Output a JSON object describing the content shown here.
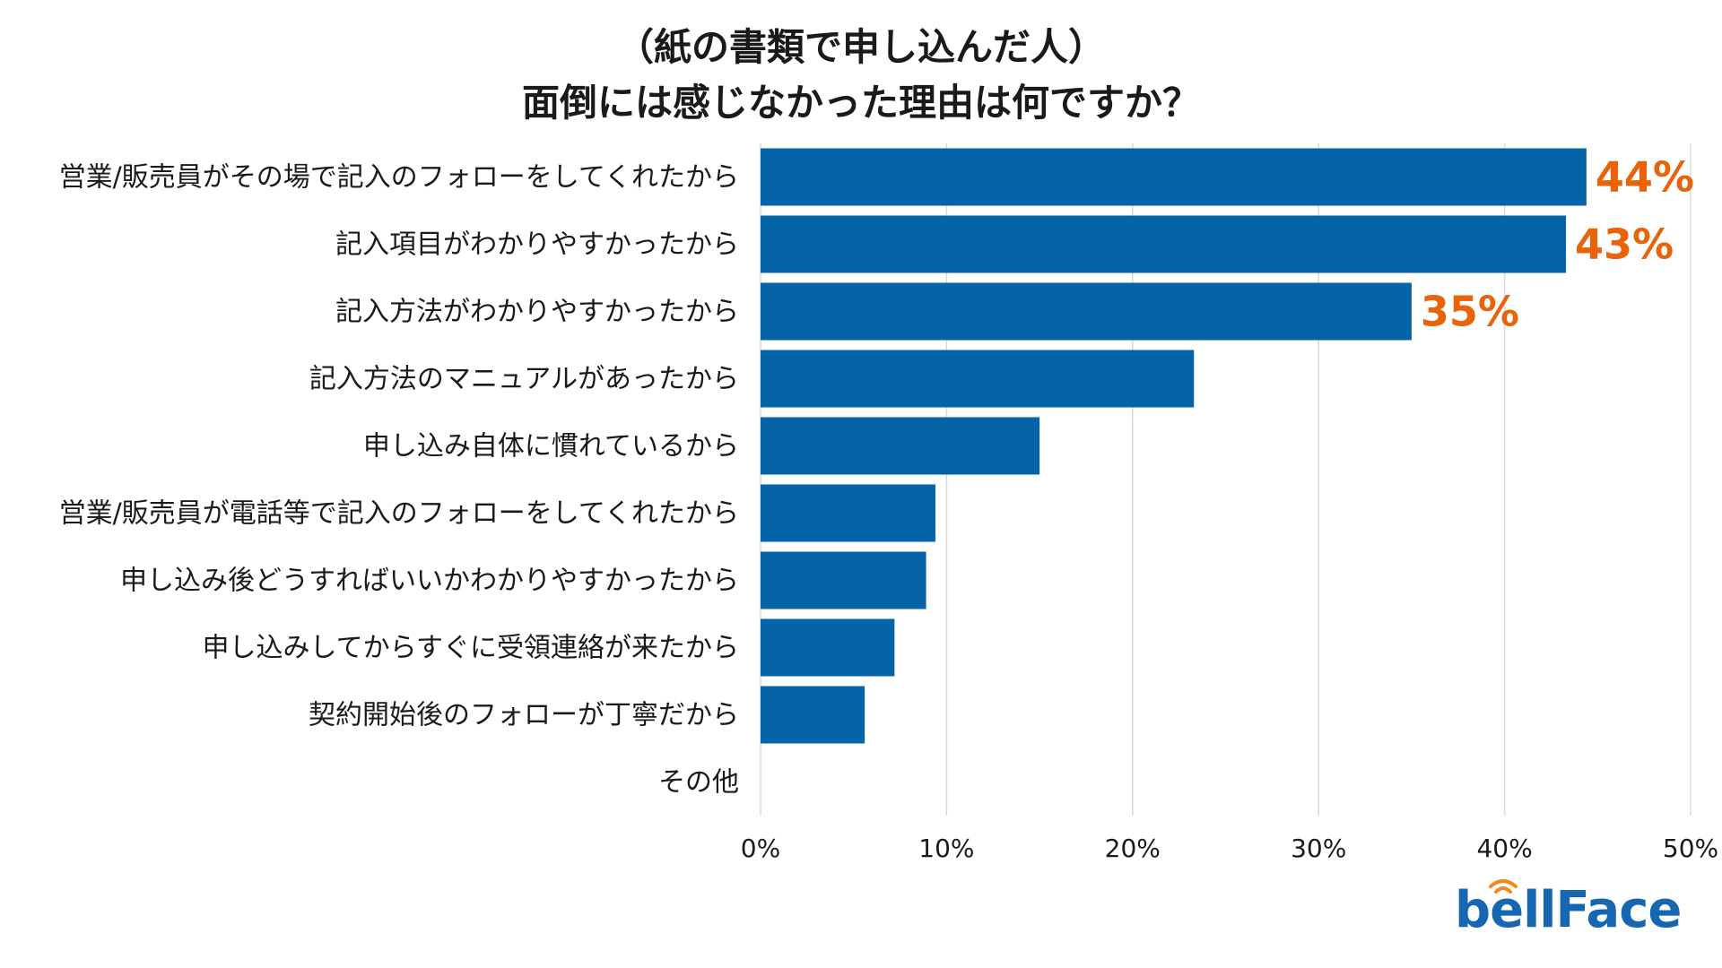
{
  "chart_data": {
    "type": "bar",
    "orientation": "horizontal",
    "title": [
      "（紙の書類で申し込んだ人）",
      "面倒には感じなかった理由は何ですか？"
    ],
    "categories": [
      "営業/販売員がその場で記入のフォローをしてくれたから",
      "記入項目がわかりやすかったから",
      "記入方法がわかりやすかったから",
      "記入方法のマニュアルがあったから",
      "申し込み自体に慣れているから",
      "営業/販売員が電話等で記入のフォローをしてくれたから",
      "申し込み後どうすればいいかわかりやすかったから",
      "申し込みしてからすぐに受領連絡が来たから",
      "契約開始後のフォローが丁寧だから",
      "その他"
    ],
    "values": [
      44.4,
      43.3,
      35.0,
      23.3,
      15.0,
      9.4,
      8.9,
      7.2,
      5.6,
      0
    ],
    "data_labels": [
      "44%",
      "43%",
      "35%",
      "",
      "",
      "",
      "",
      "",
      "",
      ""
    ],
    "xlim": [
      0,
      50
    ],
    "x_ticks": [
      "0%",
      "10%",
      "20%",
      "30%",
      "40%",
      "50%"
    ],
    "grid": true,
    "xlabel": "",
    "ylabel": "",
    "bar_color": "#0563a8",
    "label_color": "#e8630a",
    "grid_color": "#d9d9d9"
  },
  "logo": {
    "text": "bellFace",
    "brand_color": "#1666b0",
    "accent_color": "#f08a1c",
    "icon": "signal-wave-icon"
  }
}
